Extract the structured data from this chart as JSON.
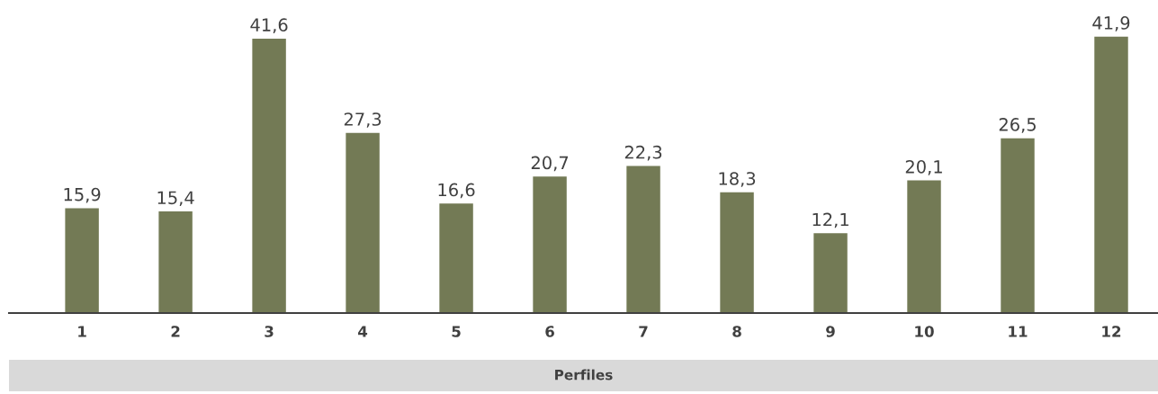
{
  "chart_data": {
    "type": "bar",
    "xlabel": "Perfiles",
    "categories": [
      "1",
      "2",
      "3",
      "4",
      "5",
      "6",
      "7",
      "8",
      "9",
      "10",
      "11",
      "12"
    ],
    "values": [
      15.9,
      15.4,
      41.6,
      27.3,
      16.6,
      20.7,
      22.3,
      18.3,
      12.1,
      20.1,
      26.5,
      41.9
    ],
    "value_labels": [
      "15,9",
      "15,4",
      "41,6",
      "27,3",
      "16,6",
      "20,7",
      "22,3",
      "18,3",
      "12,1",
      "20,1",
      "26,5",
      "41,9"
    ],
    "color": "#737a55",
    "grid": false,
    "legend": false,
    "tick_labels": "x"
  }
}
